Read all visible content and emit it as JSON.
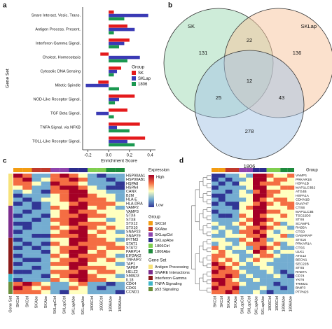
{
  "chart_data": [
    {
      "panel": "a",
      "type": "bar",
      "orientation": "horizontal",
      "ylabel": "Gene Set",
      "xlabel": "Enrichment Score",
      "legend_title": "Group",
      "categories": [
        "Snare Interact. Vesic. Trans.",
        "Antigen Process. Present.",
        "Interferon Gamma Signal.",
        "Cholest. Homeostasis",
        "Cytosolic DNA Sensing",
        "Mitotic Spindle",
        "NOD-Like Receptor Signal.",
        "TGF Beta Signal.",
        "TNFA Signal. via NFKB",
        "TOLL-Like Receptor Signal."
      ],
      "series": [
        {
          "name": "SK",
          "color": "#e41a1c",
          "values": [
            0.05,
            0.18,
            0.2,
            -0.08,
            0.12,
            -0.1,
            0.25,
            0.18,
            0.3,
            0.35
          ]
        },
        {
          "name": "SKLap",
          "color": "#3a3ab5",
          "values": [
            0.38,
            0.25,
            0.15,
            0.3,
            0.08,
            -0.22,
            0.1,
            -0.12,
            0.08,
            0.18
          ]
        },
        {
          "name": "1806",
          "color": "#1a9850",
          "values": [
            0.15,
            0.05,
            0.1,
            0.18,
            0.05,
            0.1,
            0.06,
            0.05,
            0.2,
            0.25
          ]
        }
      ],
      "xlim": [
        -0.25,
        0.45
      ],
      "xticks": [
        -0.2,
        {
          "value": 0,
          "label": "0.0"
        },
        0.2,
        0.4
      ]
    },
    {
      "panel": "b",
      "type": "venn",
      "sets": [
        {
          "name": "SK",
          "color": "#9ed9b3"
        },
        {
          "name": "SKLap",
          "color": "#f7c49c"
        },
        {
          "name": "1806",
          "color": "#a3c4e6"
        }
      ],
      "regions": [
        {
          "sets": [
            "SK"
          ],
          "value": 131
        },
        {
          "sets": [
            "SK",
            "SKLap"
          ],
          "value": 22
        },
        {
          "sets": [
            "SKLap"
          ],
          "value": 136
        },
        {
          "sets": [
            "SK",
            "SKLap",
            "1806"
          ],
          "value": 12
        },
        {
          "sets": [
            "SK",
            "1806"
          ],
          "value": 25
        },
        {
          "sets": [
            "SKLap",
            "1806"
          ],
          "value": 43
        },
        {
          "sets": [
            "1806"
          ],
          "value": 278
        }
      ]
    },
    {
      "panel": "c",
      "type": "heatmap",
      "annotation_label": "Gene Set",
      "legend_title": "Expression",
      "high_label": "High",
      "low_label": "Low",
      "zlim": [
        -2,
        2
      ],
      "colorscale": [
        "#313695",
        "#74add1",
        "#ffffbf",
        "#f46d43",
        "#a50026"
      ],
      "group_title": "Group",
      "groups": [
        {
          "name": "SKCtrl",
          "color": "#f39c12"
        },
        {
          "name": "SKAbe",
          "color": "#c0392b"
        },
        {
          "name": "SKLapCtrl",
          "color": "#8e44ad"
        },
        {
          "name": "SKLapAbe",
          "color": "#2c2c8c"
        },
        {
          "name": "1806Ctrl",
          "color": "#7fce4f"
        },
        {
          "name": "1806Abe",
          "color": "#1e8a3c"
        }
      ],
      "gene_set_title": "Gene Set",
      "gene_sets": [
        {
          "name": "Antigen Processing",
          "color": "#f7e27a",
          "count": 8
        },
        {
          "name": "SNARE Interactions",
          "color": "#7b2d8e",
          "count": 8
        },
        {
          "name": "Interferon Gamma",
          "color": "#8b1a1a",
          "count": 9
        },
        {
          "name": "TNFA Signaling",
          "color": "#3fb5c9",
          "count": 2
        },
        {
          "name": "p53 Signaling",
          "color": "#6a8f3a",
          "count": 3
        }
      ],
      "columns": [
        "SKCtrl",
        "SKCtrl",
        "SKAbe",
        "SKAbe",
        "SKLapCtrl",
        "SKLapCtrl",
        "SKLapAbe",
        "SKLapAbe",
        "1806Ctrl",
        "1806Ctrl",
        "1806Abe",
        "1806Abe"
      ],
      "rows": [
        "HSP90AA1",
        "HSP90AB1",
        "HSPA8",
        "HSPA4",
        "CANX",
        "B2M",
        "HLA-E",
        "HLA-DRA",
        "VAMP2",
        "VAMP3",
        "STX4",
        "STX8",
        "STX12",
        "STX10",
        "SNAP23",
        "SNAP29",
        "IFITM3",
        "STAT1",
        "STAT2",
        "PARP14",
        "EIF2AK2",
        "TNFAIP2",
        "TAP1",
        "TAPBP",
        "HELZ2",
        "SMAD3",
        "IL18",
        "CDK4",
        "CDK6",
        "CCND1"
      ],
      "values": [
        [
          2,
          1,
          -1,
          -1,
          1,
          2,
          1,
          0,
          -1,
          -2,
          -1,
          -1
        ],
        [
          1,
          2,
          -1,
          0,
          1,
          1,
          2,
          1,
          -1,
          -1,
          -2,
          -1
        ],
        [
          1,
          1,
          0,
          -1,
          2,
          1,
          1,
          0,
          -1,
          -1,
          -1,
          -2
        ],
        [
          0,
          1,
          -1,
          -1,
          1,
          2,
          2,
          1,
          0,
          -1,
          -2,
          -2
        ],
        [
          -1,
          0,
          -1,
          -2,
          1,
          1,
          2,
          2,
          0,
          0,
          -1,
          -1
        ],
        [
          -2,
          -1,
          -1,
          -1,
          0,
          1,
          2,
          2,
          1,
          0,
          0,
          -1
        ],
        [
          -1,
          -2,
          -1,
          0,
          0,
          1,
          2,
          1,
          1,
          1,
          0,
          -1
        ],
        [
          -2,
          -1,
          -2,
          -1,
          0,
          0,
          1,
          2,
          1,
          1,
          1,
          0
        ],
        [
          -1,
          -1,
          -2,
          -1,
          1,
          0,
          2,
          2,
          0,
          1,
          0,
          -1
        ],
        [
          -1,
          -2,
          -1,
          -1,
          0,
          1,
          2,
          1,
          1,
          0,
          0,
          0
        ],
        [
          -2,
          -1,
          -1,
          -2,
          0,
          1,
          1,
          2,
          1,
          1,
          0,
          0
        ],
        [
          -1,
          -1,
          -2,
          -1,
          1,
          1,
          2,
          2,
          0,
          0,
          -1,
          0
        ],
        [
          -2,
          -2,
          -1,
          -1,
          0,
          1,
          2,
          1,
          1,
          1,
          0,
          0
        ],
        [
          -1,
          -2,
          -1,
          -1,
          1,
          0,
          1,
          2,
          1,
          0,
          1,
          0
        ],
        [
          -2,
          -1,
          -1,
          -1,
          0,
          1,
          2,
          2,
          0,
          1,
          0,
          -1
        ],
        [
          -1,
          -1,
          -2,
          -2,
          1,
          1,
          1,
          2,
          1,
          0,
          0,
          0
        ],
        [
          -2,
          -1,
          -1,
          -1,
          0,
          0,
          2,
          2,
          1,
          1,
          0,
          -1
        ],
        [
          -1,
          -2,
          -1,
          -2,
          1,
          0,
          2,
          1,
          1,
          1,
          1,
          0
        ],
        [
          -2,
          -1,
          -2,
          -1,
          0,
          1,
          1,
          2,
          1,
          0,
          1,
          1
        ],
        [
          -1,
          -1,
          -1,
          -2,
          0,
          1,
          2,
          2,
          0,
          1,
          0,
          0
        ],
        [
          -2,
          -1,
          -1,
          -1,
          1,
          0,
          2,
          1,
          1,
          1,
          0,
          -1
        ],
        [
          -1,
          -2,
          -2,
          -1,
          0,
          1,
          1,
          2,
          1,
          0,
          1,
          0
        ],
        [
          -2,
          -1,
          -1,
          -1,
          1,
          1,
          2,
          2,
          0,
          0,
          0,
          -1
        ],
        [
          -1,
          -1,
          -2,
          -1,
          0,
          0,
          2,
          1,
          1,
          1,
          0,
          0
        ],
        [
          -2,
          -2,
          -1,
          -1,
          1,
          1,
          1,
          2,
          0,
          1,
          1,
          0
        ],
        [
          -1,
          -1,
          -1,
          -2,
          0,
          1,
          2,
          2,
          1,
          0,
          0,
          -1
        ],
        [
          -2,
          -1,
          -1,
          -1,
          1,
          0,
          1,
          2,
          1,
          1,
          0,
          0
        ],
        [
          1,
          2,
          1,
          0,
          -1,
          -1,
          0,
          1,
          -1,
          -1,
          -2,
          -1
        ],
        [
          2,
          1,
          0,
          1,
          -1,
          -1,
          1,
          0,
          -1,
          -2,
          -1,
          -1
        ],
        [
          1,
          1,
          1,
          0,
          -1,
          -2,
          0,
          0,
          -1,
          -1,
          -1,
          -2
        ]
      ]
    },
    {
      "panel": "d",
      "type": "heatmap",
      "group_title": "Group",
      "zlim": [
        -2,
        2
      ],
      "colorscale": [
        "#313695",
        "#74add1",
        "#ffffbf",
        "#f46d43",
        "#a50026"
      ],
      "groups": [
        {
          "name": "SKCtrl",
          "color": "#f39c12"
        },
        {
          "name": "SKAbe",
          "color": "#c0392b"
        },
        {
          "name": "SKLapCtrl",
          "color": "#8e44ad"
        },
        {
          "name": "SKLapAbe",
          "color": "#2c2c8c"
        },
        {
          "name": "1806Ctrl",
          "color": "#7fce4f"
        },
        {
          "name": "1806Abe",
          "color": "#1e8a3c"
        }
      ],
      "columns": [
        "SKCtrl",
        "SKCtrl",
        "SKAbe",
        "SKAbe",
        "SKLapCtrl",
        "SKLapCtrl",
        "SKLapAbe",
        "SKLapAbe",
        "1806Ctrl",
        "1806Ctrl",
        "1806Abe",
        "1806Abe"
      ],
      "rows": [
        "VAMP1",
        "PRKAR1B",
        "HSPA1B",
        "MAP1LC3B2",
        "ATG4B",
        "HSPA1A",
        "CDKN1B",
        "SNAP47",
        "CTSB",
        "MAP1LC3B",
        "TSC22D3",
        "STX6",
        "SCAMP1",
        "RAB5A",
        "CTSD",
        "GABARAP",
        "STX16",
        "PRKAR1A",
        "CTSS",
        "ULK1",
        "ATG12",
        "BECN1",
        "SEC22B",
        "STX5",
        "RAB7A",
        "CD74",
        "YKT6",
        "TRIM21",
        "BNIP3",
        "PTPN23"
      ],
      "values": [
        [
          -2,
          -2,
          -1,
          -1,
          0,
          -1,
          2,
          2,
          1,
          0,
          0,
          1
        ],
        [
          -2,
          -1,
          -2,
          -1,
          -1,
          0,
          2,
          2,
          0,
          1,
          1,
          0
        ],
        [
          -1,
          -2,
          -1,
          -2,
          0,
          0,
          2,
          1,
          1,
          1,
          0,
          0
        ],
        [
          -2,
          -1,
          -1,
          -1,
          -1,
          0,
          2,
          2,
          0,
          0,
          1,
          1
        ],
        [
          -1,
          -1,
          -2,
          -1,
          0,
          -1,
          1,
          2,
          1,
          1,
          0,
          0
        ],
        [
          -2,
          -2,
          -1,
          -1,
          0,
          0,
          2,
          2,
          1,
          0,
          0,
          0
        ],
        [
          -1,
          -2,
          -1,
          -1,
          -1,
          0,
          2,
          1,
          0,
          1,
          1,
          0
        ],
        [
          -2,
          -1,
          -2,
          -2,
          0,
          0,
          1,
          2,
          1,
          0,
          1,
          1
        ],
        [
          -1,
          -1,
          -1,
          -2,
          0,
          1,
          2,
          2,
          0,
          0,
          0,
          1
        ],
        [
          -2,
          -1,
          -1,
          -1,
          0,
          0,
          2,
          2,
          1,
          1,
          0,
          0
        ],
        [
          -1,
          -2,
          -2,
          -1,
          1,
          0,
          2,
          1,
          0,
          0,
          1,
          0
        ],
        [
          -1,
          -1,
          -1,
          -1,
          0,
          1,
          2,
          2,
          1,
          0,
          0,
          0
        ],
        [
          0,
          -1,
          -1,
          0,
          1,
          0,
          2,
          1,
          0,
          1,
          -1,
          0
        ],
        [
          -1,
          0,
          -1,
          -1,
          0,
          1,
          1,
          2,
          1,
          0,
          0,
          -1
        ],
        [
          0,
          -1,
          0,
          -1,
          1,
          1,
          2,
          1,
          0,
          -1,
          0,
          0
        ],
        [
          -1,
          -1,
          0,
          0,
          0,
          1,
          1,
          2,
          0,
          0,
          1,
          -1
        ],
        [
          0,
          0,
          -1,
          -1,
          1,
          0,
          2,
          1,
          -1,
          0,
          0,
          0
        ],
        [
          -1,
          0,
          0,
          -1,
          0,
          1,
          1,
          1,
          0,
          1,
          -1,
          0
        ],
        [
          1,
          0,
          -1,
          0,
          0,
          -1,
          1,
          2,
          1,
          0,
          -1,
          -1
        ],
        [
          0,
          1,
          0,
          -1,
          -1,
          0,
          2,
          1,
          0,
          -1,
          0,
          0
        ],
        [
          1,
          1,
          0,
          0,
          -1,
          -1,
          0,
          1,
          1,
          0,
          -1,
          -1
        ],
        [
          1,
          0,
          1,
          0,
          -1,
          0,
          1,
          0,
          0,
          -1,
          -1,
          -1
        ],
        [
          2,
          1,
          0,
          1,
          0,
          -1,
          0,
          0,
          -1,
          -1,
          -1,
          -1
        ],
        [
          1,
          2,
          1,
          0,
          -1,
          -1,
          -1,
          0,
          0,
          -1,
          -1,
          -1
        ],
        [
          2,
          1,
          1,
          1,
          0,
          -1,
          -1,
          -1,
          0,
          -1,
          -2,
          -1
        ],
        [
          1,
          1,
          2,
          1,
          -1,
          0,
          -1,
          -1,
          -1,
          0,
          -1,
          -2
        ],
        [
          2,
          2,
          1,
          0,
          -1,
          -1,
          0,
          -1,
          -1,
          -1,
          -1,
          -1
        ],
        [
          1,
          2,
          1,
          1,
          0,
          -1,
          -1,
          -1,
          -1,
          -2,
          -1,
          -1
        ],
        [
          2,
          1,
          1,
          2,
          -1,
          -1,
          -1,
          0,
          -1,
          -1,
          -2,
          -1
        ],
        [
          1,
          1,
          2,
          1,
          -1,
          -1,
          0,
          -1,
          -2,
          -1,
          -1,
          -1
        ]
      ]
    }
  ]
}
